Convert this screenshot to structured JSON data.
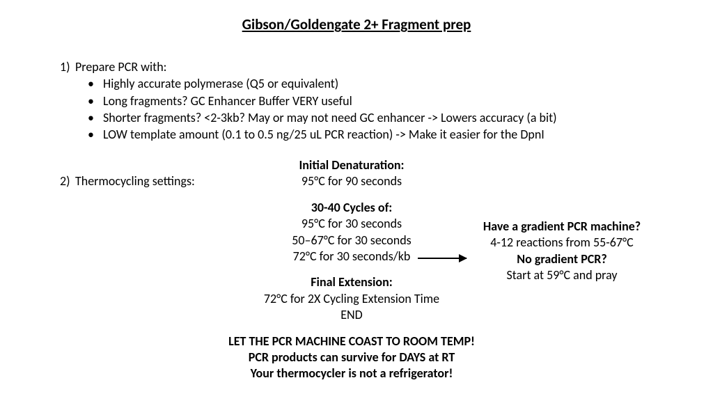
{
  "title": "Gibson/Goldengate 2+ Fragment prep",
  "step1": {
    "num": "1)",
    "label": "Prepare PCR with:",
    "bullets": [
      "Highly accurate polymerase (Q5 or equivalent)",
      "Long fragments? GC Enhancer Buffer VERY useful",
      "Shorter fragments? <2-3kb? May or may not need GC enhancer -> Lowers accuracy (a bit)",
      "LOW template amount (0.1 to 0.5 ng/25 uL PCR reaction) -> Make it easier for the DpnI"
    ]
  },
  "step2": {
    "num": "2)",
    "label": "Thermocycling settings:"
  },
  "center": {
    "denat_h": "Initial Denaturation:",
    "denat_l": "95°C for 90 seconds",
    "cycles_h": "30-40 Cycles of:",
    "cycles_l1": "95°C for 30 seconds",
    "cycles_l2": "50–67°C for 30 seconds",
    "cycles_l3": "72°C for 30 seconds/kb",
    "final_h": "Final Extension:",
    "final_l1": "72°C for 2X Cycling Extension Time",
    "final_l2": "END",
    "note1": "LET THE PCR MACHINE COAST TO ROOM TEMP!",
    "note2": "PCR products can survive for DAYS at RT",
    "note3": "Your thermocycler is not a refrigerator!"
  },
  "right": {
    "h1": "Have a gradient PCR machine?",
    "l1": "4-12 reactions from 55-67°C",
    "h2": "No gradient PCR?",
    "l2": "Start at 59°C and pray"
  }
}
